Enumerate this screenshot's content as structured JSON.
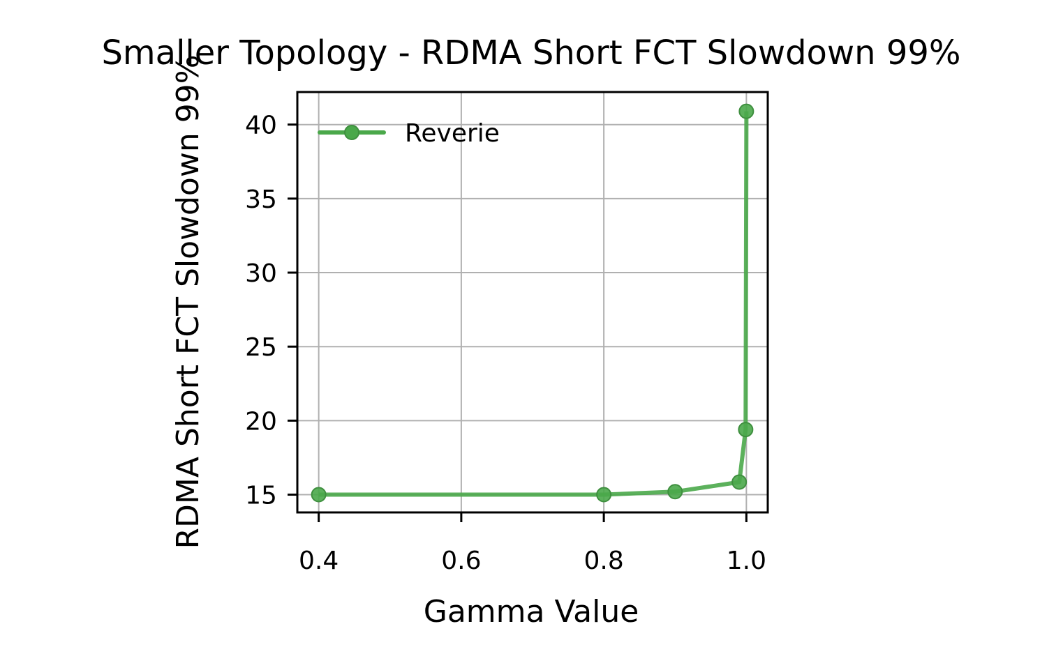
{
  "chart_data": {
    "type": "line",
    "title": "Smaller Topology - RDMA Short FCT Slowdown 99%",
    "xlabel": "Gamma Value",
    "ylabel": "RDMA Short FCT Slowdown 99%",
    "xlim": [
      0.37,
      1.03
    ],
    "ylim": [
      13.8,
      42.2
    ],
    "xticks": [
      0.4,
      0.6,
      0.8,
      1.0
    ],
    "xtick_labels": [
      "0.4",
      "0.6",
      "0.8",
      "1.0"
    ],
    "yticks": [
      15,
      20,
      25,
      30,
      35,
      40
    ],
    "ytick_labels": [
      "15",
      "20",
      "25",
      "30",
      "35",
      "40"
    ],
    "grid": true,
    "legend": {
      "position": "top-left"
    },
    "series": [
      {
        "name": "Reverie",
        "color": "#4aa84a",
        "marker": "circle",
        "x": [
          0.4,
          0.8,
          0.9,
          0.99,
          0.999,
          1.0
        ],
        "y": [
          15.0,
          15.0,
          15.2,
          15.85,
          19.4,
          40.9
        ]
      }
    ]
  }
}
